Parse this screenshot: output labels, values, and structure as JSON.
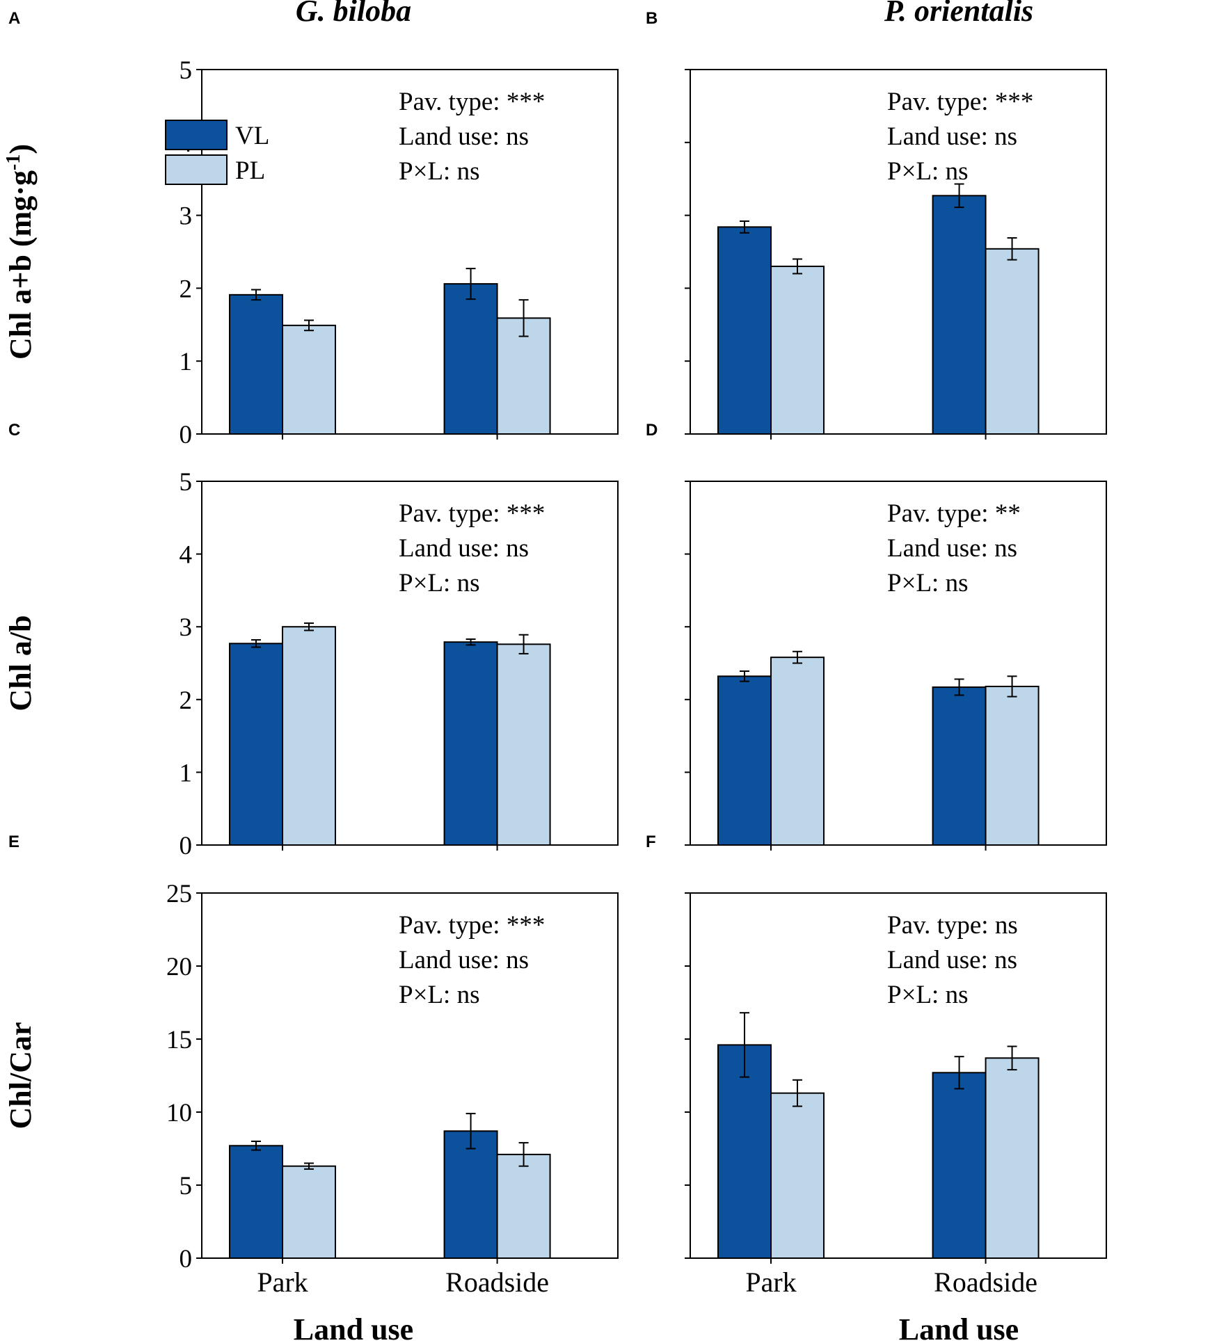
{
  "figure": {
    "col_titles": [
      "G. biloba",
      "P. orientalis"
    ],
    "x_axis_title": "Land use",
    "legend": [
      {
        "label": "VL",
        "color": "#0b519c"
      },
      {
        "label": "PL",
        "color": "#bdd6ea"
      }
    ]
  },
  "chart_data": [
    {
      "panel": "A",
      "type": "bar",
      "species": "G. biloba",
      "ylabel": "Chl a+b (mg·g⁻¹)",
      "ylim": [
        0,
        5
      ],
      "yticks": [
        0,
        1,
        2,
        3,
        4,
        5
      ],
      "categories": [
        "Park",
        "Roadside"
      ],
      "series": [
        {
          "name": "VL",
          "values": [
            1.91,
            2.06
          ],
          "errors": [
            0.07,
            0.21
          ]
        },
        {
          "name": "PL",
          "values": [
            1.49,
            1.59
          ],
          "errors": [
            0.07,
            0.25
          ]
        }
      ],
      "annotations": [
        "Pav. type: ***",
        "Land use: ns",
        "P×L: ns"
      ]
    },
    {
      "panel": "B",
      "type": "bar",
      "species": "P. orientalis",
      "ylabel": "",
      "ylim": [
        0,
        5
      ],
      "yticks": [
        0,
        1,
        2,
        3,
        4,
        5
      ],
      "categories": [
        "Park",
        "Roadside"
      ],
      "series": [
        {
          "name": "VL",
          "values": [
            2.84,
            3.27
          ],
          "errors": [
            0.08,
            0.16
          ]
        },
        {
          "name": "PL",
          "values": [
            2.3,
            2.54
          ],
          "errors": [
            0.1,
            0.15
          ]
        }
      ],
      "annotations": [
        "Pav. type: ***",
        "Land use: ns",
        "P×L: ns"
      ]
    },
    {
      "panel": "C",
      "type": "bar",
      "species": "G. biloba",
      "ylabel": "Chl a/b",
      "ylim": [
        0,
        5
      ],
      "yticks": [
        0,
        1,
        2,
        3,
        4,
        5
      ],
      "categories": [
        "Park",
        "Roadside"
      ],
      "series": [
        {
          "name": "VL",
          "values": [
            2.77,
            2.79
          ],
          "errors": [
            0.05,
            0.04
          ]
        },
        {
          "name": "PL",
          "values": [
            3.0,
            2.76
          ],
          "errors": [
            0.05,
            0.13
          ]
        }
      ],
      "annotations": [
        "Pav. type: ***",
        "Land use: ns",
        "P×L: ns"
      ]
    },
    {
      "panel": "D",
      "type": "bar",
      "species": "P. orientalis",
      "ylabel": "",
      "ylim": [
        0,
        5
      ],
      "yticks": [
        0,
        1,
        2,
        3,
        4,
        5
      ],
      "categories": [
        "Park",
        "Roadside"
      ],
      "series": [
        {
          "name": "VL",
          "values": [
            2.32,
            2.17
          ],
          "errors": [
            0.07,
            0.11
          ]
        },
        {
          "name": "PL",
          "values": [
            2.58,
            2.18
          ],
          "errors": [
            0.08,
            0.14
          ]
        }
      ],
      "annotations": [
        "Pav. type: **",
        "Land use: ns",
        "P×L: ns"
      ]
    },
    {
      "panel": "E",
      "type": "bar",
      "species": "G. biloba",
      "ylabel": "Chl/Car",
      "ylim": [
        0,
        25
      ],
      "yticks": [
        0,
        5,
        10,
        15,
        20,
        25
      ],
      "categories": [
        "Park",
        "Roadside"
      ],
      "series": [
        {
          "name": "VL",
          "values": [
            7.7,
            8.7
          ],
          "errors": [
            0.3,
            1.2
          ]
        },
        {
          "name": "PL",
          "values": [
            6.3,
            7.1
          ],
          "errors": [
            0.2,
            0.8
          ]
        }
      ],
      "annotations": [
        "Pav. type: ***",
        "Land use: ns",
        "P×L: ns"
      ]
    },
    {
      "panel": "F",
      "type": "bar",
      "species": "P. orientalis",
      "ylabel": "",
      "ylim": [
        0,
        25
      ],
      "yticks": [
        0,
        5,
        10,
        15,
        20,
        25
      ],
      "categories": [
        "Park",
        "Roadside"
      ],
      "series": [
        {
          "name": "VL",
          "values": [
            14.6,
            12.7
          ],
          "errors": [
            2.2,
            1.1
          ]
        },
        {
          "name": "PL",
          "values": [
            11.3,
            13.7
          ],
          "errors": [
            0.9,
            0.8
          ]
        }
      ],
      "annotations": [
        "Pav. type: ns",
        "Land use: ns",
        "P×L: ns"
      ]
    }
  ]
}
